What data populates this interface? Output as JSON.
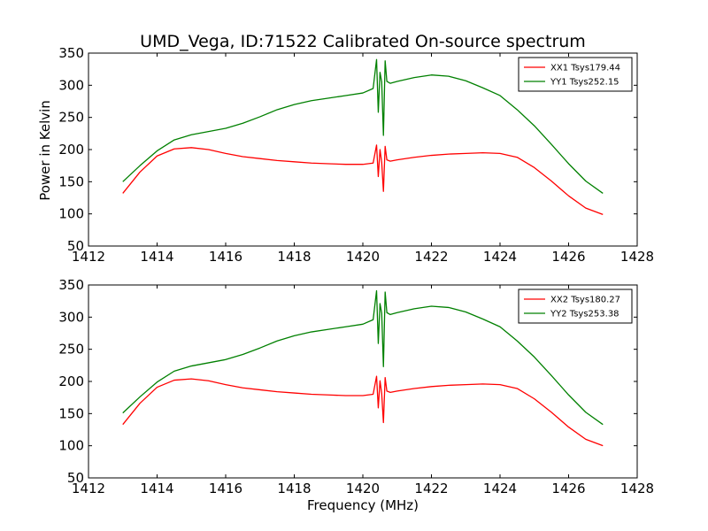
{
  "chart_data": [
    {
      "type": "line",
      "title": "UMD_Vega, ID:71522 Calibrated On-source spectrum",
      "xlabel": "",
      "ylabel": "Power in Kelvin",
      "xlim": [
        1412,
        1428
      ],
      "ylim": [
        50,
        350
      ],
      "xticks": [
        1412,
        1414,
        1416,
        1418,
        1420,
        1422,
        1424,
        1426,
        1428
      ],
      "yticks": [
        50,
        100,
        150,
        200,
        250,
        300,
        350
      ],
      "grid": false,
      "legend": "top-right",
      "x": [
        1413.0,
        1413.5,
        1414.0,
        1414.5,
        1415.0,
        1415.5,
        1416.0,
        1416.5,
        1417.0,
        1417.5,
        1418.0,
        1418.5,
        1419.0,
        1419.5,
        1420.0,
        1420.3,
        1420.4,
        1420.45,
        1420.5,
        1420.55,
        1420.6,
        1420.65,
        1420.7,
        1420.8,
        1421.0,
        1421.5,
        1422.0,
        1422.5,
        1423.0,
        1423.5,
        1424.0,
        1424.5,
        1425.0,
        1425.5,
        1426.0,
        1426.5,
        1427.0
      ],
      "series": [
        {
          "name": "XX1 Tsys179.44",
          "color": "#ff0000",
          "values": [
            132,
            165,
            190,
            201,
            203,
            200,
            194,
            189,
            186,
            183,
            181,
            179,
            178,
            177,
            177,
            179,
            207,
            158,
            200,
            180,
            135,
            205,
            184,
            182,
            184,
            188,
            191,
            193,
            194,
            195,
            194,
            188,
            172,
            151,
            128,
            109,
            99
          ]
        },
        {
          "name": "YY1 Tsys252.15",
          "color": "#008000",
          "values": [
            150,
            175,
            198,
            215,
            223,
            228,
            233,
            241,
            251,
            262,
            270,
            276,
            280,
            284,
            288,
            295,
            340,
            258,
            320,
            305,
            222,
            338,
            306,
            303,
            306,
            312,
            316,
            314,
            307,
            296,
            284,
            262,
            237,
            208,
            178,
            151,
            132
          ]
        }
      ]
    },
    {
      "type": "line",
      "title": "",
      "xlabel": "Frequency (MHz)",
      "ylabel": "",
      "xlim": [
        1412,
        1428
      ],
      "ylim": [
        50,
        350
      ],
      "xticks": [
        1412,
        1414,
        1416,
        1418,
        1420,
        1422,
        1424,
        1426,
        1428
      ],
      "yticks": [
        50,
        100,
        150,
        200,
        250,
        300,
        350
      ],
      "grid": false,
      "legend": "top-right",
      "x": [
        1413.0,
        1413.5,
        1414.0,
        1414.5,
        1415.0,
        1415.5,
        1416.0,
        1416.5,
        1417.0,
        1417.5,
        1418.0,
        1418.5,
        1419.0,
        1419.5,
        1420.0,
        1420.3,
        1420.4,
        1420.45,
        1420.5,
        1420.55,
        1420.6,
        1420.65,
        1420.7,
        1420.8,
        1421.0,
        1421.5,
        1422.0,
        1422.5,
        1423.0,
        1423.5,
        1424.0,
        1424.5,
        1425.0,
        1425.5,
        1426.0,
        1426.5,
        1427.0
      ],
      "series": [
        {
          "name": "XX2 Tsys180.27",
          "color": "#ff0000",
          "values": [
            133,
            166,
            191,
            202,
            204,
            201,
            195,
            190,
            187,
            184,
            182,
            180,
            179,
            178,
            178,
            180,
            208,
            159,
            201,
            181,
            136,
            206,
            185,
            183,
            185,
            189,
            192,
            194,
            195,
            196,
            195,
            189,
            173,
            152,
            129,
            110,
            100
          ]
        },
        {
          "name": "YY2 Tsys253.38",
          "color": "#008000",
          "values": [
            151,
            176,
            199,
            216,
            224,
            229,
            234,
            242,
            252,
            263,
            271,
            277,
            281,
            285,
            289,
            296,
            341,
            259,
            321,
            306,
            223,
            339,
            307,
            304,
            307,
            313,
            317,
            315,
            308,
            297,
            285,
            263,
            238,
            209,
            179,
            152,
            133
          ]
        }
      ]
    }
  ]
}
